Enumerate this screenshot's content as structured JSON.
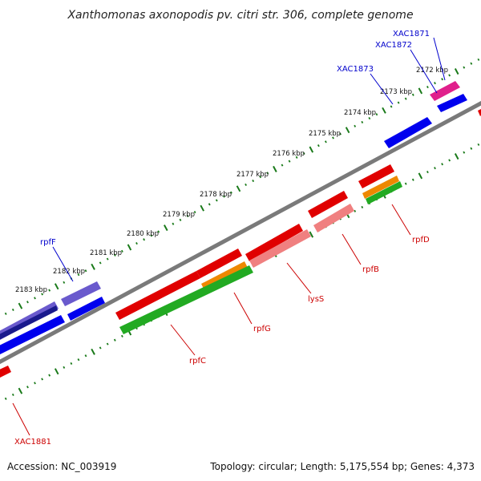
{
  "title": "Xanthomonas axonopodis pv. citri str. 306, complete genome",
  "accession": "Accession: NC_003919",
  "summary": "Topology: circular; Length: 5,175,554 bp; Genes: 4,373",
  "colors": {
    "background": "#ffffff",
    "backbone": "#808080",
    "ticks": "#1a7a1a",
    "label_blue": "#0000cc",
    "label_red": "#cc0000",
    "leader_blue": "#0000cc",
    "leader_red": "#cc0000"
  },
  "ticks": [
    "2172 kbp",
    "2173 kbp",
    "2174 kbp",
    "2175 kbp",
    "2176 kbp",
    "2177 kbp",
    "2178 kbp",
    "2179 kbp",
    "2180 kbp",
    "2181 kbp",
    "2182 kbp",
    "2183 kbp"
  ],
  "gene_labels": [
    {
      "text": "XAC1871",
      "color": "blue"
    },
    {
      "text": "XAC1872",
      "color": "blue"
    },
    {
      "text": "XAC1873",
      "color": "blue"
    },
    {
      "text": "rpfF",
      "color": "blue"
    },
    {
      "text": "rpfD",
      "color": "red"
    },
    {
      "text": "rpfB",
      "color": "red"
    },
    {
      "text": "lysS",
      "color": "red"
    },
    {
      "text": "rpfG",
      "color": "red"
    },
    {
      "text": "rpfC",
      "color": "red"
    },
    {
      "text": "XAC1881",
      "color": "red"
    }
  ],
  "feature_colors": {
    "blue": "#0000ee",
    "blue_light": "#3b3bff",
    "navy": "#1a1a8c",
    "slate": "#6a5acd",
    "red": "#e00000",
    "red_light": "#ff4040",
    "pink": "#f08080",
    "magenta": "#e0208c",
    "orange": "#ee8800",
    "green": "#22aa22"
  }
}
